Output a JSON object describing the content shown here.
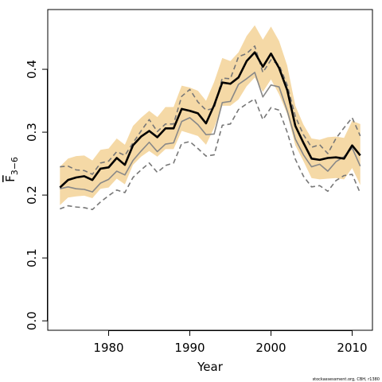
{
  "chart_data": {
    "type": "line",
    "title": "",
    "xlabel": "Year",
    "ylabel": "F",
    "ylabel_sub": "3−6",
    "credit": "stockassessment.org, CBH, r1380",
    "xlim": [
      1972.5,
      2012.5
    ],
    "ylim": [
      -0.015,
      0.495
    ],
    "xticks": [
      1980,
      1990,
      2000,
      2010
    ],
    "yticks": [
      0.0,
      0.1,
      0.2,
      0.3,
      0.4
    ],
    "ytick_labels": [
      "0.0",
      "0.1",
      "0.2",
      "0.3",
      "0.4"
    ],
    "grid": false,
    "legend": "none",
    "x": [
      1974,
      1975,
      1976,
      1977,
      1978,
      1979,
      1980,
      1981,
      1982,
      1983,
      1984,
      1985,
      1986,
      1987,
      1988,
      1989,
      1990,
      1991,
      1992,
      1993,
      1994,
      1995,
      1996,
      1997,
      1998,
      1999,
      2000,
      2001,
      2002,
      2003,
      2004,
      2005,
      2006,
      2007,
      2008,
      2009,
      2010,
      2011
    ],
    "series": [
      {
        "role": "main",
        "color": "#000000",
        "values": [
          0.212,
          0.224,
          0.228,
          0.23,
          0.224,
          0.242,
          0.244,
          0.259,
          0.248,
          0.279,
          0.293,
          0.302,
          0.292,
          0.306,
          0.306,
          0.337,
          0.334,
          0.33,
          0.314,
          0.343,
          0.379,
          0.377,
          0.387,
          0.413,
          0.427,
          0.404,
          0.425,
          0.402,
          0.367,
          0.31,
          0.283,
          0.258,
          0.256,
          0.259,
          0.26,
          0.258,
          0.279,
          0.263
        ]
      },
      {
        "role": "band",
        "color": "#f5d9a6",
        "upper": [
          0.245,
          0.258,
          0.262,
          0.263,
          0.255,
          0.272,
          0.274,
          0.29,
          0.28,
          0.31,
          0.323,
          0.334,
          0.324,
          0.34,
          0.34,
          0.374,
          0.371,
          0.366,
          0.35,
          0.38,
          0.418,
          0.413,
          0.427,
          0.453,
          0.47,
          0.447,
          0.468,
          0.445,
          0.406,
          0.342,
          0.312,
          0.29,
          0.288,
          0.292,
          0.293,
          0.291,
          0.318,
          0.313
        ],
        "lower": [
          0.184,
          0.196,
          0.198,
          0.199,
          0.195,
          0.21,
          0.212,
          0.226,
          0.217,
          0.248,
          0.261,
          0.27,
          0.261,
          0.273,
          0.273,
          0.302,
          0.298,
          0.294,
          0.28,
          0.307,
          0.342,
          0.342,
          0.352,
          0.373,
          0.387,
          0.364,
          0.384,
          0.36,
          0.329,
          0.279,
          0.254,
          0.227,
          0.225,
          0.226,
          0.227,
          0.225,
          0.243,
          0.216
        ]
      },
      {
        "role": "grey-solid",
        "color": "#888888",
        "values": [
          0.21,
          0.213,
          0.21,
          0.209,
          0.205,
          0.219,
          0.225,
          0.238,
          0.232,
          0.255,
          0.27,
          0.284,
          0.269,
          0.281,
          0.283,
          0.317,
          0.323,
          0.312,
          0.296,
          0.297,
          0.347,
          0.349,
          0.376,
          0.385,
          0.395,
          0.356,
          0.375,
          0.372,
          0.334,
          0.289,
          0.264,
          0.245,
          0.249,
          0.238,
          0.253,
          0.261,
          0.275,
          0.246
        ]
      },
      {
        "role": "grey-dashed-upper",
        "color": "#777777",
        "values": [
          0.245,
          0.246,
          0.24,
          0.239,
          0.233,
          0.251,
          0.254,
          0.269,
          0.263,
          0.283,
          0.302,
          0.32,
          0.301,
          0.313,
          0.313,
          0.357,
          0.368,
          0.348,
          0.335,
          0.338,
          0.386,
          0.385,
          0.42,
          0.425,
          0.437,
          0.395,
          0.415,
          0.407,
          0.375,
          0.325,
          0.296,
          0.276,
          0.28,
          0.266,
          0.29,
          0.307,
          0.323,
          0.294
        ]
      },
      {
        "role": "grey-dashed-lower",
        "color": "#777777",
        "values": [
          0.178,
          0.183,
          0.181,
          0.18,
          0.177,
          0.189,
          0.199,
          0.208,
          0.204,
          0.228,
          0.24,
          0.251,
          0.236,
          0.247,
          0.251,
          0.282,
          0.285,
          0.274,
          0.262,
          0.264,
          0.311,
          0.313,
          0.336,
          0.345,
          0.353,
          0.32,
          0.339,
          0.335,
          0.3,
          0.257,
          0.23,
          0.213,
          0.215,
          0.206,
          0.223,
          0.231,
          0.233,
          0.203
        ]
      }
    ]
  }
}
